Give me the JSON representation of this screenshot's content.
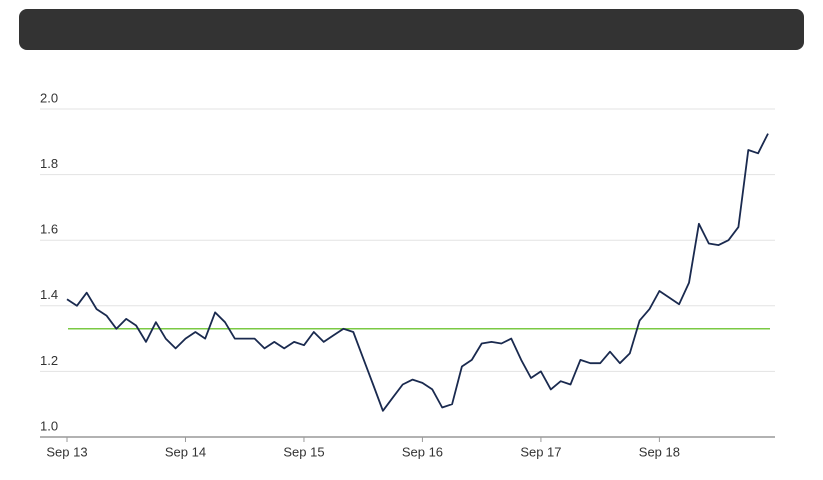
{
  "chart_data": {
    "type": "line",
    "categories": [
      "Sep 13",
      null,
      null,
      null,
      null,
      null,
      null,
      null,
      null,
      null,
      null,
      null,
      "Sep 14",
      null,
      null,
      null,
      null,
      null,
      null,
      null,
      null,
      null,
      null,
      null,
      "Sep 15",
      null,
      null,
      null,
      null,
      null,
      null,
      null,
      null,
      null,
      null,
      null,
      "Sep 16",
      null,
      null,
      null,
      null,
      null,
      null,
      null,
      null,
      null,
      null,
      null,
      "Sep 17",
      null,
      null,
      null,
      null,
      null,
      null,
      null,
      null,
      null,
      null,
      null,
      "Sep 18",
      null,
      null,
      null,
      null,
      null,
      null,
      null,
      null,
      null,
      null,
      null
    ],
    "series": [
      {
        "color": "#1a2a4f",
        "values": [
          1.42,
          1.4,
          1.44,
          1.39,
          1.37,
          1.33,
          1.36,
          1.34,
          1.29,
          1.35,
          1.3,
          1.27,
          1.3,
          1.32,
          1.3,
          1.38,
          1.35,
          1.3,
          1.3,
          1.3,
          1.27,
          1.29,
          1.27,
          1.29,
          1.28,
          1.32,
          1.29,
          1.31,
          1.33,
          1.32,
          1.24,
          1.16,
          1.08,
          1.12,
          1.16,
          1.175,
          1.165,
          1.145,
          1.09,
          1.1,
          1.215,
          1.235,
          1.285,
          1.29,
          1.285,
          1.3,
          1.235,
          1.18,
          1.2,
          1.145,
          1.17,
          1.16,
          1.235,
          1.225,
          1.225,
          1.26,
          1.225,
          1.255,
          1.355,
          1.39,
          1.445,
          1.425,
          1.405,
          1.47,
          1.65,
          1.59,
          1.585,
          1.6,
          1.64,
          1.875,
          1.865,
          1.925
        ]
      }
    ],
    "reference_line": {
      "value": 1.33,
      "color": "#7ac943"
    },
    "ylim": [
      1.0,
      2.0
    ],
    "yticks": [
      {
        "value": 1.0,
        "label": "1.0"
      },
      1.2,
      1.4,
      1.6,
      1.8,
      {
        "value": 2.0,
        "label": "2.0"
      }
    ],
    "grid": true
  }
}
